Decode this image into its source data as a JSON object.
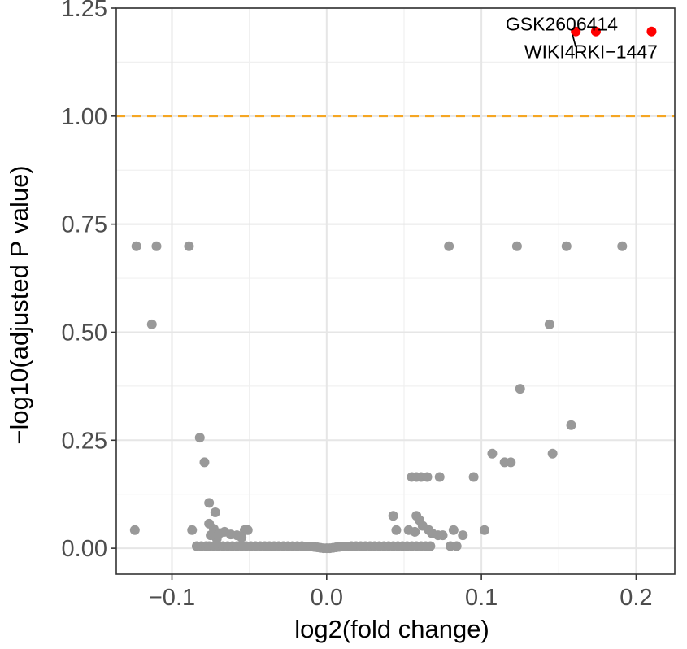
{
  "chart_data": {
    "type": "scatter",
    "title": "",
    "xlabel": "log2(fold change)",
    "ylabel": "−log10(adjusted P value)",
    "xlim": [
      -0.136,
      0.225
    ],
    "ylim": [
      -0.06,
      1.25
    ],
    "x_ticks": [
      -0.1,
      0.0,
      0.1,
      0.2
    ],
    "x_tick_labels": [
      "−0.1",
      "0.0",
      "0.1",
      "0.2"
    ],
    "y_ticks": [
      0.0,
      0.25,
      0.5,
      0.75,
      1.0,
      1.25
    ],
    "y_tick_labels": [
      "0.00",
      "0.25",
      "0.50",
      "0.75",
      "1.00",
      "1.25"
    ],
    "grid": true,
    "legend": "none",
    "threshold": {
      "y": 1.0,
      "color": "#f5a623",
      "style": "dashed"
    },
    "colors": {
      "significant": "#ff0000",
      "not_significant": "#999999"
    },
    "significant_points": [
      {
        "x": 0.161,
        "y": 1.196,
        "label": "WIKI4"
      },
      {
        "x": 0.174,
        "y": 1.196,
        "label": "GSK2606414"
      },
      {
        "x": 0.21,
        "y": 1.196,
        "label": "RKI−1447"
      }
    ],
    "points": [
      [
        -0.123,
        0.699
      ],
      [
        -0.11,
        0.699
      ],
      [
        -0.089,
        0.699
      ],
      [
        0.079,
        0.699
      ],
      [
        0.123,
        0.699
      ],
      [
        0.155,
        0.699
      ],
      [
        0.191,
        0.699
      ],
      [
        -0.113,
        0.518
      ],
      [
        0.144,
        0.518
      ],
      [
        0.125,
        0.369
      ],
      [
        0.158,
        0.285
      ],
      [
        -0.082,
        0.256
      ],
      [
        -0.079,
        0.199
      ],
      [
        0.107,
        0.219
      ],
      [
        0.115,
        0.199
      ],
      [
        0.119,
        0.199
      ],
      [
        0.146,
        0.219
      ],
      [
        0.055,
        0.165
      ],
      [
        0.058,
        0.165
      ],
      [
        0.061,
        0.165
      ],
      [
        0.065,
        0.165
      ],
      [
        0.073,
        0.165
      ],
      [
        0.095,
        0.165
      ],
      [
        -0.076,
        0.105
      ],
      [
        -0.072,
        0.083
      ],
      [
        -0.076,
        0.057
      ],
      [
        -0.073,
        0.045
      ],
      [
        -0.124,
        0.042
      ],
      [
        -0.087,
        0.042
      ],
      [
        0.102,
        0.042
      ],
      [
        -0.069,
        0.035
      ],
      [
        -0.066,
        0.038
      ],
      [
        -0.062,
        0.032
      ],
      [
        -0.058,
        0.03
      ],
      [
        -0.055,
        0.025
      ],
      [
        -0.053,
        0.042
      ],
      [
        -0.051,
        0.042
      ],
      [
        -0.071,
        0.022
      ],
      [
        -0.075,
        0.03
      ],
      [
        0.043,
        0.075
      ],
      [
        0.058,
        0.075
      ],
      [
        0.06,
        0.065
      ],
      [
        0.045,
        0.042
      ],
      [
        0.053,
        0.042
      ],
      [
        0.057,
        0.038
      ],
      [
        0.066,
        0.042
      ],
      [
        0.062,
        0.052
      ],
      [
        0.068,
        0.035
      ],
      [
        0.072,
        0.03
      ],
      [
        0.075,
        0.03
      ],
      [
        0.082,
        0.042
      ],
      [
        0.088,
        0.03
      ],
      [
        -0.084,
        0.005
      ],
      [
        -0.081,
        0.005
      ],
      [
        -0.078,
        0.005
      ],
      [
        -0.076,
        0.005
      ],
      [
        -0.073,
        0.005
      ],
      [
        -0.07,
        0.005
      ],
      [
        -0.067,
        0.005
      ],
      [
        -0.064,
        0.005
      ],
      [
        -0.061,
        0.005
      ],
      [
        -0.058,
        0.005
      ],
      [
        -0.055,
        0.005
      ],
      [
        -0.052,
        0.005
      ],
      [
        -0.049,
        0.005
      ],
      [
        -0.046,
        0.005
      ],
      [
        -0.043,
        0.005
      ],
      [
        -0.04,
        0.005
      ],
      [
        -0.037,
        0.005
      ],
      [
        -0.034,
        0.005
      ],
      [
        -0.031,
        0.005
      ],
      [
        -0.028,
        0.005
      ],
      [
        -0.025,
        0.005
      ],
      [
        -0.022,
        0.005
      ],
      [
        -0.019,
        0.005
      ],
      [
        -0.016,
        0.005
      ],
      [
        -0.013,
        0.004
      ],
      [
        -0.01,
        0.004
      ],
      [
        -0.008,
        0.003
      ],
      [
        -0.006,
        0.002
      ],
      [
        -0.004,
        0.001
      ],
      [
        -0.002,
        0.0
      ],
      [
        0.0,
        0.0
      ],
      [
        0.002,
        0.0
      ],
      [
        0.004,
        0.001
      ],
      [
        0.006,
        0.002
      ],
      [
        0.008,
        0.003
      ],
      [
        0.01,
        0.004
      ],
      [
        0.013,
        0.004
      ],
      [
        0.016,
        0.005
      ],
      [
        0.019,
        0.005
      ],
      [
        0.022,
        0.005
      ],
      [
        0.025,
        0.005
      ],
      [
        0.028,
        0.005
      ],
      [
        0.031,
        0.005
      ],
      [
        0.034,
        0.005
      ],
      [
        0.037,
        0.005
      ],
      [
        0.04,
        0.005
      ],
      [
        0.043,
        0.005
      ],
      [
        0.046,
        0.005
      ],
      [
        0.049,
        0.005
      ],
      [
        0.052,
        0.005
      ],
      [
        0.055,
        0.005
      ],
      [
        0.058,
        0.005
      ],
      [
        0.061,
        0.005
      ],
      [
        0.064,
        0.005
      ],
      [
        0.067,
        0.005
      ],
      [
        0.08,
        0.005
      ],
      [
        0.084,
        0.005
      ]
    ]
  }
}
